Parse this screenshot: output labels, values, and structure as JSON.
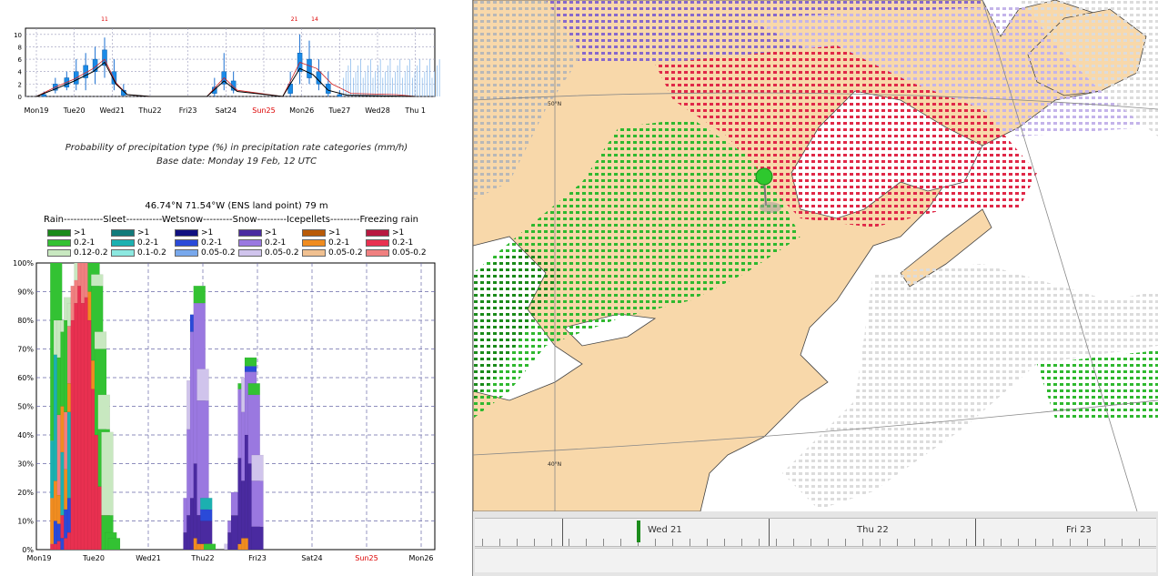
{
  "meteogram": {
    "y_ticks": [
      "10",
      "8",
      "6",
      "4",
      "2",
      "0"
    ],
    "peak_labels": [
      "11",
      "21",
      "14"
    ],
    "days": [
      {
        "label": "Mon19",
        "weekend": false
      },
      {
        "label": "Tue20",
        "weekend": false
      },
      {
        "label": "Wed21",
        "weekend": false
      },
      {
        "label": "Thu22",
        "weekend": false
      },
      {
        "label": "Fri23",
        "weekend": false
      },
      {
        "label": "Sat24",
        "weekend": false
      },
      {
        "label": "Sun25",
        "weekend": true
      },
      {
        "label": "Mon26",
        "weekend": false
      },
      {
        "label": "Tue27",
        "weekend": false
      },
      {
        "label": "Wed28",
        "weekend": false
      },
      {
        "label": "Thu 1",
        "weekend": false
      }
    ],
    "boxes": [
      {
        "x": 0.2,
        "lo": 0,
        "q1": 0,
        "q3": 0.3,
        "hi": 0.8
      },
      {
        "x": 0.5,
        "lo": 0.5,
        "q1": 1,
        "q3": 2,
        "hi": 3
      },
      {
        "x": 0.8,
        "lo": 1,
        "q1": 1.5,
        "q3": 3,
        "hi": 4
      },
      {
        "x": 1.05,
        "lo": 1,
        "q1": 2,
        "q3": 4,
        "hi": 6
      },
      {
        "x": 1.3,
        "lo": 1,
        "q1": 3,
        "q3": 5,
        "hi": 7
      },
      {
        "x": 1.55,
        "lo": 2,
        "q1": 4,
        "q3": 6,
        "hi": 8
      },
      {
        "x": 1.8,
        "lo": 3,
        "q1": 5,
        "q3": 7.5,
        "hi": 9.5
      },
      {
        "x": 2.05,
        "lo": 1,
        "q1": 2,
        "q3": 4,
        "hi": 6
      },
      {
        "x": 2.3,
        "lo": 0,
        "q1": 0.2,
        "q3": 1,
        "hi": 2
      },
      {
        "x": 4.7,
        "lo": 0,
        "q1": 0.5,
        "q3": 1.5,
        "hi": 3
      },
      {
        "x": 4.95,
        "lo": 1,
        "q1": 2,
        "q3": 4,
        "hi": 7
      },
      {
        "x": 5.2,
        "lo": 0.5,
        "q1": 1,
        "q3": 2.5,
        "hi": 4
      },
      {
        "x": 6.7,
        "lo": 0,
        "q1": 0.5,
        "q3": 2,
        "hi": 4
      },
      {
        "x": 6.95,
        "lo": 2,
        "q1": 4,
        "q3": 7,
        "hi": 10
      },
      {
        "x": 7.2,
        "lo": 2,
        "q1": 3,
        "q3": 6,
        "hi": 9
      },
      {
        "x": 7.45,
        "lo": 1,
        "q1": 2,
        "q3": 4,
        "hi": 6
      },
      {
        "x": 7.7,
        "lo": 0,
        "q1": 0.5,
        "q3": 2,
        "hi": 4
      },
      {
        "x": 8.0,
        "lo": 0,
        "q1": 0,
        "q3": 0.3,
        "hi": 1
      }
    ],
    "mean_line": [
      [
        0,
        0
      ],
      [
        0.5,
        1.2
      ],
      [
        1,
        2.5
      ],
      [
        1.5,
        4
      ],
      [
        1.8,
        5.5
      ],
      [
        2.1,
        2
      ],
      [
        2.4,
        0.3
      ],
      [
        3,
        0
      ],
      [
        4.5,
        0
      ],
      [
        4.95,
        2.5
      ],
      [
        5.3,
        0.8
      ],
      [
        6.5,
        0
      ],
      [
        6.95,
        4.5
      ],
      [
        7.3,
        3.5
      ],
      [
        7.7,
        1
      ],
      [
        8.2,
        0.2
      ],
      [
        10,
        0
      ]
    ],
    "rain_line": [
      [
        0,
        0
      ],
      [
        0.5,
        1.5
      ],
      [
        1,
        2.8
      ],
      [
        1.5,
        4.5
      ],
      [
        1.8,
        6
      ],
      [
        2.1,
        2.2
      ],
      [
        2.4,
        0.3
      ],
      [
        3,
        0
      ],
      [
        4.5,
        0
      ],
      [
        4.95,
        3
      ],
      [
        5.3,
        1
      ],
      [
        6.5,
        0
      ],
      [
        6.95,
        5.5
      ],
      [
        7.4,
        4.5
      ],
      [
        7.8,
        2
      ],
      [
        8.3,
        0.5
      ],
      [
        9.5,
        0.3
      ],
      [
        10,
        0
      ]
    ]
  },
  "caption": {
    "line1": "Probability of precipitation type (%) in precipitation rate categories (mm/h)",
    "line2": "Base date: Monday 19 Feb, 12 UTC",
    "location": "46.74°N 71.54°W (ENS land point) 79 m"
  },
  "legend": {
    "header": "Rain------------Sleet-----------Wetsnow---------Snow---------Icepellets---------Freezing rain",
    "groups": [
      {
        "items": [
          {
            "label": ">1",
            "color": "#1a8a1a"
          },
          {
            "label": "0.2-1",
            "color": "#33c233"
          },
          {
            "label": "0.12-0.2",
            "color": "#c8e8c0"
          }
        ]
      },
      {
        "items": [
          {
            "label": ">1",
            "color": "#127a7a"
          },
          {
            "label": "0.2-1",
            "color": "#1cb0b0"
          },
          {
            "label": "0.1-0.2",
            "color": "#8ce8e0"
          }
        ]
      },
      {
        "items": [
          {
            "label": ">1",
            "color": "#101080"
          },
          {
            "label": "0.2-1",
            "color": "#2a4ad8"
          },
          {
            "label": "0.05-0.2",
            "color": "#78a8ec"
          }
        ]
      },
      {
        "items": [
          {
            "label": ">1",
            "color": "#4a2aa0"
          },
          {
            "label": "0.2-1",
            "color": "#9a78e0"
          },
          {
            "label": "0.05-0.2",
            "color": "#d0c4ec"
          }
        ]
      },
      {
        "items": [
          {
            "label": ">1",
            "color": "#b85a08"
          },
          {
            "label": "0.2-1",
            "color": "#f08c20"
          },
          {
            "label": "0.05-0.2",
            "color": "#f0c090"
          }
        ]
      },
      {
        "items": [
          {
            "label": ">1",
            "color": "#b81840"
          },
          {
            "label": "0.2-1",
            "color": "#e83050"
          },
          {
            "label": "0.05-0.2",
            "color": "#f08080"
          }
        ]
      }
    ]
  },
  "chart_data": {
    "type": "bar",
    "stacked": true,
    "y_ticks": [
      "100%",
      "90%",
      "80%",
      "70%",
      "60%",
      "50%",
      "40%",
      "30%",
      "20%",
      "10%",
      "0%"
    ],
    "ylim": [
      0,
      100
    ],
    "days": [
      {
        "label": "Mon19",
        "weekend": false
      },
      {
        "label": "Tue20",
        "weekend": false
      },
      {
        "label": "Wed21",
        "weekend": false
      },
      {
        "label": "Thu22",
        "weekend": false
      },
      {
        "label": "Fri23",
        "weekend": false
      },
      {
        "label": "Sat24",
        "weekend": false
      },
      {
        "label": "Sun25",
        "weekend": true
      },
      {
        "label": "Mon26",
        "weekend": false
      }
    ],
    "series_colors": {
      "rain_hi": "#1a8a1a",
      "rain_mid": "#33c233",
      "rain_lo": "#c8e8c0",
      "sleet_hi": "#127a7a",
      "sleet_mid": "#1cb0b0",
      "sleet_lo": "#8ce8e0",
      "wet_hi": "#101080",
      "wet_mid": "#2a4ad8",
      "wet_lo": "#78a8ec",
      "snow_hi": "#4a2aa0",
      "snow_mid": "#9a78e0",
      "snow_lo": "#d0c4ec",
      "ice_hi": "#b85a08",
      "ice_mid": "#f08c20",
      "ice_lo": "#f0c090",
      "frz_hi": "#b81840",
      "frz_mid": "#e83050",
      "frz_lo": "#f08080"
    },
    "bars": [
      {
        "x": 1.25,
        "stack": [
          [
            "frz_mid",
            2
          ],
          [
            "ice_mid",
            16
          ],
          [
            "sleet_mid",
            20
          ],
          [
            "rain_mid",
            62
          ]
        ]
      },
      {
        "x": 1.5,
        "stack": [
          [
            "frz_mid",
            2
          ],
          [
            "wet_mid",
            8
          ],
          [
            "ice_mid",
            14
          ],
          [
            "sleet_mid",
            44
          ],
          [
            "rain_lo",
            12
          ]
        ]
      },
      {
        "x": 1.75,
        "stack": [
          [
            "frz_mid",
            3
          ],
          [
            "wet_mid",
            6
          ],
          [
            "ice_mid",
            10
          ],
          [
            "frz_lo",
            28
          ],
          [
            "rain_mid",
            20
          ],
          [
            "rain_lo",
            13
          ]
        ]
      },
      {
        "x": 2.0,
        "stack": [
          [
            "wet_mid",
            4
          ],
          [
            "frz_mid",
            8
          ],
          [
            "sleet_mid",
            22
          ],
          [
            "ice_mid",
            16
          ],
          [
            "rain_mid",
            26
          ],
          [
            "rain_lo",
            4
          ]
        ]
      },
      {
        "x": 2.25,
        "stack": [
          [
            "frz_mid",
            4
          ],
          [
            "wet_mid",
            10
          ],
          [
            "ice_mid",
            14
          ],
          [
            "frz_lo",
            20
          ],
          [
            "rain_mid",
            32
          ],
          [
            "rain_lo",
            8
          ]
        ]
      },
      {
        "x": 2.5,
        "stack": [
          [
            "frz_mid",
            6
          ],
          [
            "wet_mid",
            12
          ],
          [
            "sleet_mid",
            30
          ],
          [
            "ice_mid",
            10
          ],
          [
            "frz_lo",
            20
          ],
          [
            "rain_lo",
            8
          ]
        ]
      },
      {
        "x": 2.75,
        "stack": [
          [
            "frz_mid",
            80
          ],
          [
            "frz_lo",
            12
          ]
        ]
      },
      {
        "x": 3.0,
        "stack": [
          [
            "frz_mid",
            86
          ],
          [
            "frz_lo",
            8
          ],
          [
            "rain_lo",
            6
          ]
        ]
      },
      {
        "x": 3.25,
        "stack": [
          [
            "frz_mid",
            92
          ],
          [
            "frz_lo",
            8
          ]
        ]
      },
      {
        "x": 3.5,
        "stack": [
          [
            "frz_mid",
            86
          ],
          [
            "frz_lo",
            14
          ]
        ]
      },
      {
        "x": 3.75,
        "stack": [
          [
            "frz_mid",
            88
          ],
          [
            "frz_lo",
            12
          ]
        ]
      },
      {
        "x": 4.0,
        "stack": [
          [
            "frz_mid",
            80
          ],
          [
            "ice_mid",
            10
          ],
          [
            "rain_mid",
            10
          ]
        ]
      },
      {
        "x": 4.25,
        "stack": [
          [
            "frz_mid",
            56
          ],
          [
            "ice_mid",
            10
          ],
          [
            "rain_mid",
            26
          ],
          [
            "rain_lo",
            4
          ]
        ]
      },
      {
        "x": 4.5,
        "stack": [
          [
            "frz_mid",
            40
          ],
          [
            "rain_mid",
            30
          ],
          [
            "rain_lo",
            6
          ]
        ]
      },
      {
        "x": 4.75,
        "stack": [
          [
            "frz_mid",
            22
          ],
          [
            "rain_mid",
            20
          ],
          [
            "rain_lo",
            12
          ]
        ]
      },
      {
        "x": 5.0,
        "stack": [
          [
            "rain_mid",
            12
          ],
          [
            "rain_lo",
            29
          ]
        ]
      },
      {
        "x": 5.25,
        "stack": [
          [
            "rain_mid",
            6
          ]
        ]
      },
      {
        "x": 5.5,
        "stack": [
          [
            "rain_mid",
            4
          ]
        ]
      },
      {
        "x": 11.0,
        "stack": [
          [
            "snow_hi",
            6
          ],
          [
            "snow_mid",
            12
          ]
        ]
      },
      {
        "x": 11.25,
        "stack": [
          [
            "snow_hi",
            12
          ],
          [
            "snow_mid",
            30
          ],
          [
            "snow_lo",
            17
          ]
        ]
      },
      {
        "x": 11.5,
        "stack": [
          [
            "snow_hi",
            18
          ],
          [
            "snow_mid",
            58
          ],
          [
            "wet_mid",
            6
          ]
        ]
      },
      {
        "x": 11.75,
        "stack": [
          [
            "ice_mid",
            4
          ],
          [
            "snow_hi",
            26
          ],
          [
            "snow_mid",
            56
          ],
          [
            "rain_mid",
            6
          ]
        ]
      },
      {
        "x": 12.0,
        "stack": [
          [
            "ice_mid",
            2
          ],
          [
            "snow_hi",
            10
          ],
          [
            "snow_mid",
            40
          ],
          [
            "snow_lo",
            11
          ]
        ]
      },
      {
        "x": 12.25,
        "stack": [
          [
            "ice_mid",
            2
          ],
          [
            "snow_hi",
            8
          ],
          [
            "wet_mid",
            4
          ],
          [
            "sleet_mid",
            4
          ]
        ]
      },
      {
        "x": 12.5,
        "stack": [
          [
            "rain_mid",
            2
          ]
        ]
      },
      {
        "x": 14.0,
        "stack": [
          [
            "snow_lo",
            2
          ]
        ]
      },
      {
        "x": 14.25,
        "stack": [
          [
            "snow_hi",
            6
          ],
          [
            "snow_mid",
            4
          ]
        ]
      },
      {
        "x": 14.5,
        "stack": [
          [
            "snow_hi",
            12
          ],
          [
            "snow_mid",
            8
          ]
        ]
      },
      {
        "x": 15.0,
        "stack": [
          [
            "ice_mid",
            2
          ],
          [
            "snow_hi",
            30
          ],
          [
            "snow_mid",
            24
          ],
          [
            "rain_mid",
            2
          ]
        ]
      },
      {
        "x": 15.25,
        "stack": [
          [
            "ice_mid",
            4
          ],
          [
            "snow_hi",
            20
          ],
          [
            "snow_mid",
            24
          ],
          [
            "snow_lo",
            12
          ]
        ]
      },
      {
        "x": 15.5,
        "stack": [
          [
            "ice_mid",
            4
          ],
          [
            "snow_hi",
            36
          ],
          [
            "snow_mid",
            22
          ],
          [
            "wet_mid",
            2
          ],
          [
            "rain_mid",
            3
          ]
        ]
      },
      {
        "x": 15.75,
        "stack": [
          [
            "snow_hi",
            30
          ],
          [
            "snow_mid",
            24
          ],
          [
            "rain_mid",
            4
          ]
        ]
      },
      {
        "x": 16.0,
        "stack": [
          [
            "snow_hi",
            8
          ],
          [
            "snow_mid",
            16
          ],
          [
            "snow_lo",
            9
          ]
        ]
      }
    ]
  },
  "map": {
    "lat_labels": [
      "50°N",
      "40°N"
    ],
    "timeline_days": [
      "Wed 21",
      "Thu 22",
      "Fri 23"
    ]
  }
}
